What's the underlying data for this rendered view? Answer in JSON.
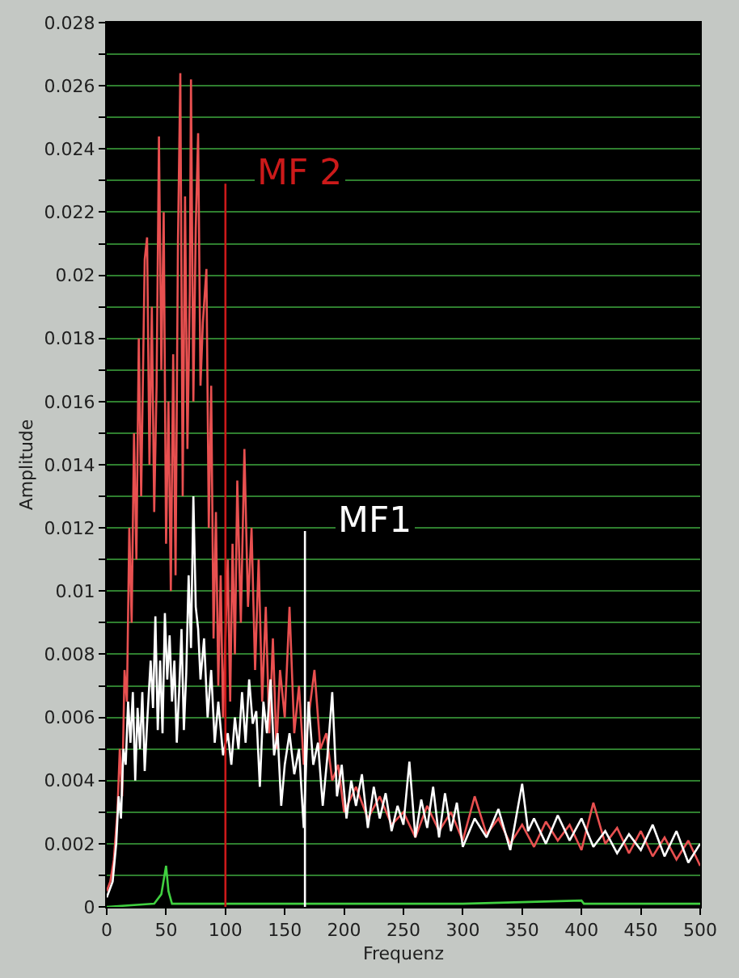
{
  "chart_data": {
    "type": "line",
    "xlabel": "Frequenz",
    "ylabel": "Amplitude",
    "xlim": [
      0,
      500
    ],
    "xticks": [
      0,
      50,
      100,
      150,
      200,
      250,
      300,
      350,
      400,
      450,
      500
    ],
    "ylim": [
      0,
      0.028
    ],
    "yticks": [
      0,
      {
        "value": 0.001,
        "label": null
      },
      0.002,
      {
        "value": 0.003,
        "label": null
      },
      0.004,
      {
        "value": 0.005,
        "label": null
      },
      0.006,
      {
        "value": 0.007,
        "label": null
      },
      0.008,
      {
        "value": 0.009,
        "label": null
      },
      0.01,
      {
        "value": 0.011,
        "label": null
      },
      0.012,
      {
        "value": 0.013,
        "label": null
      },
      0.014,
      {
        "value": 0.015,
        "label": null
      },
      0.016,
      {
        "value": 0.017,
        "label": null
      },
      0.018,
      {
        "value": 0.019,
        "label": null
      },
      0.02,
      {
        "value": 0.021,
        "label": null
      },
      0.022,
      {
        "value": 0.023,
        "label": null
      },
      0.024,
      {
        "value": 0.025,
        "label": null
      },
      0.026,
      {
        "value": 0.027,
        "label": null
      },
      0.028
    ],
    "grid": "y",
    "marker": "none",
    "line_style": "solid",
    "series": [
      {
        "color": "#e85050",
        "x": [
          0,
          3,
          6,
          9,
          11,
          13,
          15,
          17,
          19,
          21,
          23,
          25,
          27,
          29,
          32,
          34,
          36,
          38,
          40,
          42,
          44,
          46,
          48,
          50,
          52,
          54,
          56,
          58,
          60,
          62,
          64,
          66,
          68,
          70,
          71,
          73,
          75,
          77,
          79,
          81,
          84,
          86,
          88,
          90,
          92,
          94,
          96,
          98,
          102,
          104,
          106,
          108,
          110,
          113,
          116,
          119,
          122,
          125,
          128,
          131,
          134,
          137,
          140,
          143,
          146,
          150,
          154,
          158,
          162,
          166,
          170,
          175,
          180,
          185,
          190,
          195,
          200,
          210,
          220,
          230,
          240,
          250,
          260,
          270,
          280,
          290,
          300,
          310,
          320,
          330,
          340,
          350,
          360,
          370,
          380,
          390,
          400,
          410,
          420,
          430,
          440,
          450,
          460,
          470,
          480,
          490,
          500
        ],
        "values": [
          0.0005,
          0.0008,
          0.0015,
          0.003,
          0.005,
          0.0035,
          0.0075,
          0.0065,
          0.012,
          0.009,
          0.015,
          0.011,
          0.018,
          0.013,
          0.0205,
          0.0212,
          0.014,
          0.019,
          0.0125,
          0.0165,
          0.0244,
          0.017,
          0.022,
          0.0115,
          0.016,
          0.01,
          0.0175,
          0.0105,
          0.021,
          0.0264,
          0.013,
          0.0225,
          0.0145,
          0.0195,
          0.0262,
          0.016,
          0.0215,
          0.0245,
          0.0165,
          0.0185,
          0.0202,
          0.012,
          0.0165,
          0.0085,
          0.0125,
          0.007,
          0.0105,
          0.006,
          0.011,
          0.0065,
          0.0115,
          0.008,
          0.0135,
          0.009,
          0.0145,
          0.0095,
          0.012,
          0.0075,
          0.011,
          0.0065,
          0.0095,
          0.0055,
          0.0085,
          0.005,
          0.0075,
          0.006,
          0.0095,
          0.0055,
          0.007,
          0.0045,
          0.006,
          0.0075,
          0.005,
          0.0055,
          0.004,
          0.0045,
          0.003,
          0.0038,
          0.0028,
          0.0035,
          0.0026,
          0.003,
          0.0022,
          0.0032,
          0.0024,
          0.003,
          0.0021,
          0.0035,
          0.0023,
          0.0028,
          0.002,
          0.0026,
          0.0019,
          0.0027,
          0.0021,
          0.0026,
          0.0018,
          0.0033,
          0.002,
          0.0025,
          0.0017,
          0.0024,
          0.0016,
          0.0022,
          0.0015,
          0.0021,
          0.0013
        ]
      },
      {
        "color": "#ffffff",
        "x": [
          0,
          5,
          8,
          10,
          12,
          14,
          16,
          18,
          20,
          22,
          24,
          26,
          28,
          30,
          32,
          34,
          37,
          39,
          41,
          43,
          45,
          47,
          49,
          51,
          53,
          55,
          57,
          59,
          61,
          63,
          65,
          67,
          69,
          71,
          73,
          75,
          77,
          79,
          82,
          85,
          88,
          91,
          94,
          98,
          102,
          105,
          108,
          111,
          114,
          117,
          120,
          123,
          126,
          129,
          132,
          135,
          138,
          141,
          144,
          147,
          150,
          154,
          158,
          162,
          166,
          170,
          174,
          178,
          182,
          186,
          190,
          194,
          198,
          202,
          206,
          210,
          215,
          220,
          225,
          230,
          235,
          240,
          245,
          250,
          255,
          260,
          265,
          270,
          275,
          280,
          285,
          290,
          295,
          300,
          310,
          320,
          330,
          340,
          350,
          355,
          360,
          370,
          380,
          390,
          400,
          410,
          420,
          430,
          440,
          450,
          460,
          470,
          480,
          490,
          500
        ],
        "values": [
          0.0003,
          0.0008,
          0.002,
          0.0035,
          0.0028,
          0.005,
          0.0045,
          0.0065,
          0.0052,
          0.0068,
          0.004,
          0.0063,
          0.005,
          0.0068,
          0.0043,
          0.0058,
          0.0078,
          0.0063,
          0.0092,
          0.0056,
          0.0078,
          0.0055,
          0.0093,
          0.0072,
          0.0086,
          0.0065,
          0.0078,
          0.0052,
          0.0068,
          0.0088,
          0.0056,
          0.0074,
          0.0105,
          0.0082,
          0.013,
          0.0095,
          0.0088,
          0.0072,
          0.0085,
          0.006,
          0.0075,
          0.0052,
          0.0065,
          0.0048,
          0.0055,
          0.0045,
          0.006,
          0.005,
          0.0068,
          0.0052,
          0.0072,
          0.0058,
          0.0062,
          0.0038,
          0.0065,
          0.0055,
          0.0072,
          0.0048,
          0.0055,
          0.0032,
          0.0045,
          0.0055,
          0.0042,
          0.005,
          0.0025,
          0.0065,
          0.0045,
          0.0052,
          0.0032,
          0.0048,
          0.0068,
          0.0035,
          0.0045,
          0.0028,
          0.004,
          0.0032,
          0.0042,
          0.0025,
          0.0038,
          0.0028,
          0.0036,
          0.0024,
          0.0032,
          0.0026,
          0.0046,
          0.0022,
          0.0034,
          0.0025,
          0.0038,
          0.0022,
          0.0036,
          0.0024,
          0.0033,
          0.0019,
          0.0028,
          0.0022,
          0.0031,
          0.0018,
          0.0039,
          0.0024,
          0.0028,
          0.002,
          0.0029,
          0.0021,
          0.0028,
          0.0019,
          0.0024,
          0.0017,
          0.0023,
          0.0018,
          0.0026,
          0.0016,
          0.0024,
          0.0014,
          0.002
        ]
      },
      {
        "color": "#40d040",
        "x": [
          0,
          40,
          46,
          50,
          52,
          55,
          100,
          200,
          300,
          350,
          400,
          402,
          500
        ],
        "values": [
          0,
          0.0001,
          0.0004,
          0.0013,
          0.0005,
          0.0001,
          0.0001,
          0.0001,
          0.0001,
          0.00015,
          0.0002,
          0.0001,
          0.0001
        ]
      },
      {
        "color": "#cc1a1a",
        "x": [
          100,
          100
        ],
        "values": [
          0,
          0.0229
        ]
      },
      {
        "color": "#ffffff",
        "x": [
          167,
          167
        ],
        "values": [
          0,
          0.0119
        ]
      }
    ],
    "annotations": [
      {
        "text": "MF 2",
        "x": 100,
        "y": 0.0229
      },
      {
        "text": "MF1",
        "x": 167,
        "y": 0.0119
      }
    ]
  }
}
